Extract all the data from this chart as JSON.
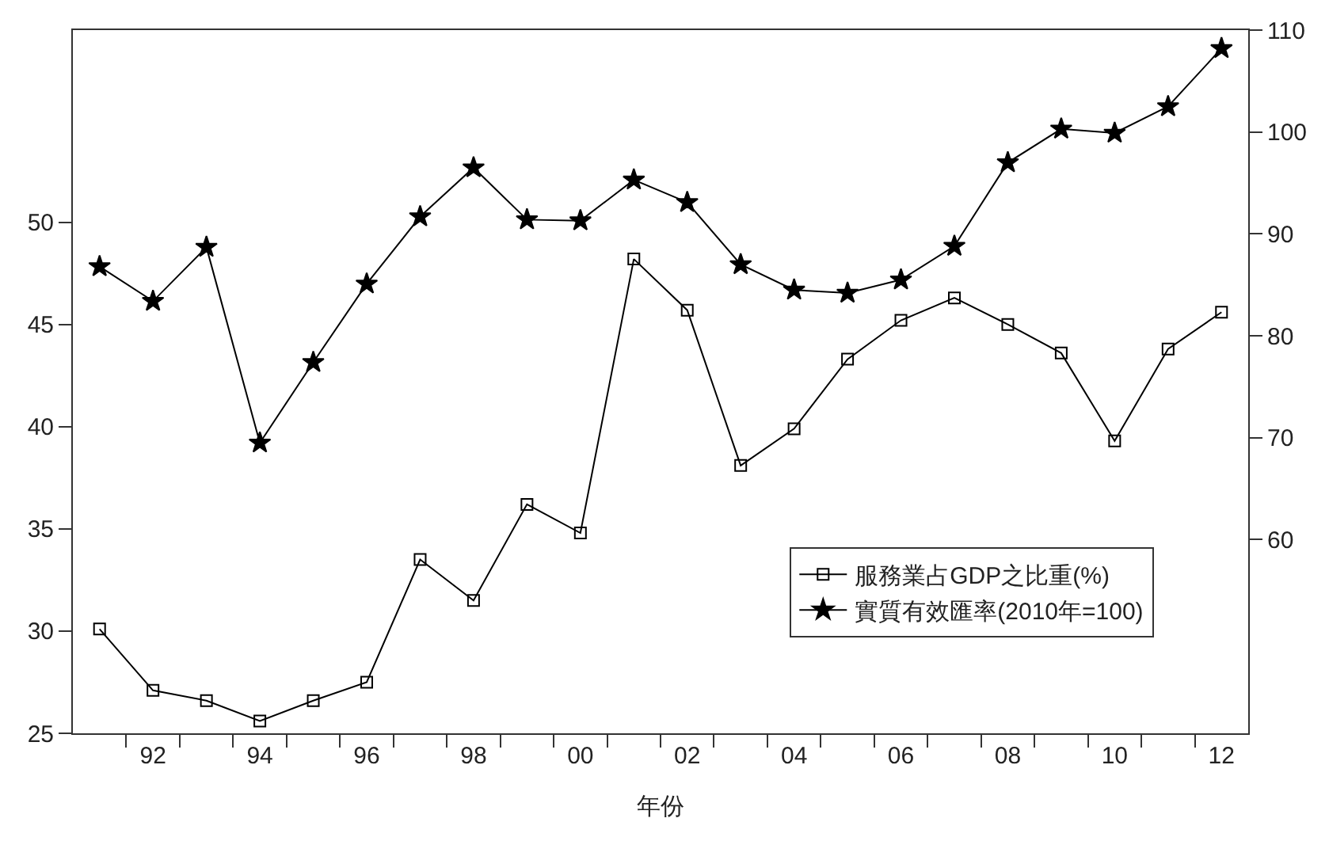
{
  "chart_data": {
    "type": "line",
    "xlabel": "年份",
    "x": [
      1991,
      1992,
      1993,
      1994,
      1995,
      1996,
      1997,
      1998,
      1999,
      2000,
      2001,
      2002,
      2003,
      2004,
      2005,
      2006,
      2007,
      2008,
      2009,
      2010,
      2011,
      2012
    ],
    "series": [
      {
        "name": "服務業占GDP之比重(%)",
        "color": "#000000",
        "marker": "square",
        "values": [
          30.1,
          27.1,
          26.6,
          25.6,
          26.6,
          27.5,
          33.5,
          31.5,
          36.2,
          34.8,
          48.2,
          45.7,
          38.1,
          39.9,
          43.3,
          45.2,
          46.3,
          45.0,
          43.6,
          39.3,
          43.8,
          45.6
        ]
      },
      {
        "name": "實質有效匯率(2010年=100)",
        "color": "#000000",
        "marker": "star",
        "axis": "y2",
        "values": [
          86.8,
          83.4,
          88.7,
          69.5,
          77.4,
          85.1,
          91.7,
          96.5,
          91.4,
          91.3,
          95.3,
          93.1,
          87.0,
          84.5,
          84.2,
          85.5,
          88.8,
          97.0,
          100.3,
          99.9,
          102.5,
          108.2
        ]
      }
    ],
    "xlim": [
      1990.5,
      2012.5
    ],
    "xticks": [
      {
        "value": 1991.5,
        "label": null
      },
      {
        "value": 1992,
        "label": "92"
      },
      {
        "value": 1992.5,
        "label": null
      },
      {
        "value": 1993.5,
        "label": null
      },
      {
        "value": 1994,
        "label": "94"
      },
      {
        "value": 1994.5,
        "label": null
      },
      {
        "value": 1995.5,
        "label": null
      },
      {
        "value": 1996,
        "label": "96"
      },
      {
        "value": 1996.5,
        "label": null
      },
      {
        "value": 1997.5,
        "label": null
      },
      {
        "value": 1998,
        "label": "98"
      },
      {
        "value": 1998.5,
        "label": null
      },
      {
        "value": 1999.5,
        "label": null
      },
      {
        "value": 2000,
        "label": "00"
      },
      {
        "value": 2000.5,
        "label": null
      },
      {
        "value": 2001.5,
        "label": null
      },
      {
        "value": 2002,
        "label": "02"
      },
      {
        "value": 2002.5,
        "label": null
      },
      {
        "value": 2003.5,
        "label": null
      },
      {
        "value": 2004,
        "label": "04"
      },
      {
        "value": 2004.5,
        "label": null
      },
      {
        "value": 2005.5,
        "label": null
      },
      {
        "value": 2006,
        "label": "06"
      },
      {
        "value": 2006.5,
        "label": null
      },
      {
        "value": 2007.5,
        "label": null
      },
      {
        "value": 2008,
        "label": "08"
      },
      {
        "value": 2008.5,
        "label": null
      },
      {
        "value": 2009.5,
        "label": null
      },
      {
        "value": 2010,
        "label": "10"
      },
      {
        "value": 2010.5,
        "label": null
      },
      {
        "value": 2011.5,
        "label": null
      },
      {
        "value": 2012,
        "label": "12"
      }
    ],
    "ylim": [
      25,
      59.4
    ],
    "yticks": [
      25,
      30,
      35,
      40,
      45,
      50
    ],
    "y2lim": [
      41,
      110
    ],
    "y2ticks": [
      60,
      70,
      80,
      90,
      100,
      110
    ],
    "grid": false,
    "legend": "bottom right",
    "line_style": "solid"
  }
}
